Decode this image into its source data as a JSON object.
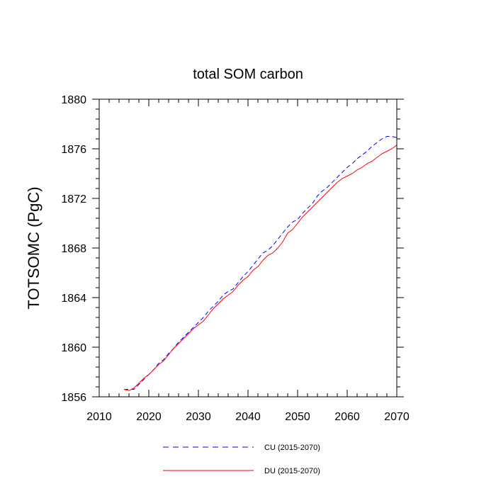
{
  "chart_data": {
    "type": "line",
    "title": "total SOM carbon",
    "xlabel": "",
    "ylabel": "TOTSOMC  (PgC)",
    "xlim": [
      2010,
      2070
    ],
    "ylim": [
      1856,
      1880
    ],
    "xticks": [
      2010,
      2020,
      2030,
      2040,
      2050,
      2060,
      2070
    ],
    "xtick_labels": [
      "2010",
      "2020",
      "2030",
      "2040",
      "2050",
      "2060",
      "2070"
    ],
    "yticks": [
      1856,
      1860,
      1864,
      1868,
      1872,
      1876,
      1880
    ],
    "ytick_labels": [
      "1856",
      "1860",
      "1864",
      "1868",
      "1872",
      "1876",
      "1880"
    ],
    "grid": false,
    "legend_position": "bottom-center",
    "x": [
      2015,
      2016,
      2017,
      2018,
      2019,
      2020,
      2021,
      2022,
      2023,
      2024,
      2025,
      2026,
      2027,
      2028,
      2029,
      2030,
      2031,
      2032,
      2033,
      2034,
      2035,
      2036,
      2037,
      2038,
      2039,
      2040,
      2041,
      2042,
      2043,
      2044,
      2045,
      2046,
      2047,
      2048,
      2049,
      2050,
      2051,
      2052,
      2053,
      2054,
      2055,
      2056,
      2057,
      2058,
      2059,
      2060,
      2061,
      2062,
      2063,
      2064,
      2065,
      2066,
      2067,
      2068,
      2069,
      2070
    ],
    "series": [
      {
        "name": "CU (2015-2070)",
        "color": "#0000ff",
        "style": "dashed",
        "values": [
          1856.6,
          1856.6,
          1856.6,
          1857.0,
          1857.4,
          1857.8,
          1858.2,
          1858.7,
          1859.0,
          1859.5,
          1859.9,
          1860.4,
          1860.8,
          1861.2,
          1861.6,
          1862.0,
          1862.4,
          1862.9,
          1863.3,
          1863.7,
          1864.2,
          1864.5,
          1864.7,
          1865.2,
          1865.7,
          1866.1,
          1866.6,
          1867.1,
          1867.6,
          1867.8,
          1868.2,
          1868.7,
          1869.2,
          1869.7,
          1870.1,
          1870.3,
          1870.8,
          1871.2,
          1871.6,
          1872.2,
          1872.6,
          1872.9,
          1873.3,
          1873.7,
          1874.1,
          1874.5,
          1874.8,
          1875.2,
          1875.5,
          1875.8,
          1876.2,
          1876.5,
          1876.8,
          1877.0,
          1877.0,
          1876.9
        ]
      },
      {
        "name": "DU (2015-2070)",
        "color": "#ff0000",
        "style": "solid",
        "values": [
          1856.6,
          1856.5,
          1856.7,
          1857.1,
          1857.5,
          1857.8,
          1858.2,
          1858.6,
          1858.9,
          1859.4,
          1859.9,
          1860.3,
          1860.7,
          1861.1,
          1861.5,
          1861.8,
          1862.1,
          1862.6,
          1863.1,
          1863.5,
          1863.9,
          1864.2,
          1864.5,
          1865.0,
          1865.4,
          1865.7,
          1866.2,
          1866.5,
          1867.0,
          1867.4,
          1867.6,
          1868.0,
          1868.5,
          1869.2,
          1869.5,
          1870.0,
          1870.5,
          1870.9,
          1871.3,
          1871.7,
          1872.1,
          1872.5,
          1872.9,
          1873.3,
          1873.6,
          1873.8,
          1874.0,
          1874.3,
          1874.5,
          1874.8,
          1875.0,
          1875.3,
          1875.6,
          1875.8,
          1876.0,
          1876.3
        ]
      }
    ]
  }
}
